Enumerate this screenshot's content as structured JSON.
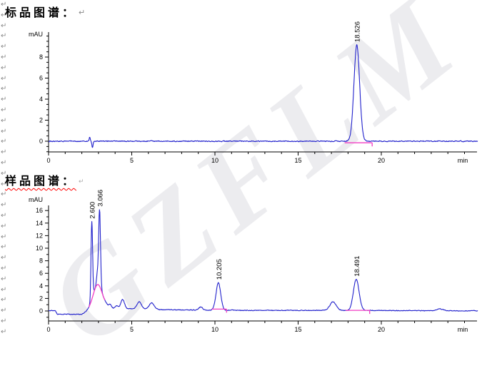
{
  "page": {
    "background": "#ffffff"
  },
  "watermark": {
    "text": "GZFLM"
  },
  "formatting_marks": {
    "glyph": "↵",
    "count": 32
  },
  "colors": {
    "trace": "#2121cc",
    "integration": "#f23cc4",
    "axis": "#000000",
    "title": "#000000",
    "spell_underline": "#ff0000",
    "paragraph_mark": "#8a8a8a"
  },
  "chart_data": [
    {
      "type": "line",
      "name": "standard-chromatogram",
      "title": "标品图谱：",
      "y_axis_label": "mAU",
      "x_axis_label": "min",
      "x_ticks": [
        0,
        5,
        10,
        15,
        20
      ],
      "y_ticks": [
        0,
        2,
        4,
        6,
        8
      ],
      "y_minor_step": 0.5,
      "x_range_min": [
        0,
        25.7
      ],
      "y_range_mau": [
        -1.0,
        10.4
      ],
      "peaks": [
        {
          "rt": 18.526,
          "label": "18.526",
          "height_mau": 9.15,
          "sigma_min": 0.17
        }
      ],
      "artifacts": [
        {
          "rt": 2.47,
          "height_mau": 0.35,
          "sigma_min": 0.03
        },
        {
          "rt": 2.64,
          "height_mau": -0.6,
          "sigma_min": 0.035
        }
      ],
      "baseline_anchors": [
        [
          0,
          0
        ],
        [
          25.7,
          0
        ]
      ],
      "noise_mau": 0.045,
      "noise_seed": 1234,
      "integration_segments": [
        {
          "kind": "flat",
          "from": 17.8,
          "to": 19.45,
          "level_mau": -0.15
        }
      ]
    },
    {
      "type": "line",
      "name": "sample-chromatogram",
      "title": "样品图谱：",
      "y_axis_label": "mAU",
      "x_axis_label": "min",
      "x_ticks": [
        0,
        5,
        10,
        15,
        20
      ],
      "y_ticks": [
        0,
        2,
        4,
        6,
        8,
        10,
        12,
        14,
        16
      ],
      "y_minor_step": 1,
      "x_range_min": [
        0,
        25.7
      ],
      "y_range_mau": [
        -1.6,
        16.8
      ],
      "peaks": [
        {
          "rt": 2.6,
          "label": "2.600",
          "height_mau": 12.4,
          "sigma_min": 0.048
        },
        {
          "rt": 2.93,
          "height_mau": 1.6,
          "sigma_min": 0.05
        },
        {
          "rt": 3.066,
          "label": "3.066",
          "height_mau": 12.2,
          "sigma_min": 0.055
        },
        {
          "rt": 3.7,
          "height_mau": 0.5,
          "sigma_min": 0.07
        },
        {
          "rt": 4.1,
          "height_mau": 0.4,
          "sigma_min": 0.09
        },
        {
          "rt": 4.45,
          "height_mau": 1.45,
          "sigma_min": 0.11
        },
        {
          "rt": 5.45,
          "height_mau": 1.15,
          "sigma_min": 0.13
        },
        {
          "rt": 6.2,
          "height_mau": 1.0,
          "sigma_min": 0.15
        },
        {
          "rt": 9.15,
          "height_mau": 0.5,
          "sigma_min": 0.11
        },
        {
          "rt": 10.205,
          "label": "10.205",
          "height_mau": 4.4,
          "sigma_min": 0.14
        },
        {
          "rt": 17.1,
          "height_mau": 1.35,
          "sigma_min": 0.19
        },
        {
          "rt": 18.491,
          "label": "18.491",
          "height_mau": 4.95,
          "sigma_min": 0.17
        },
        {
          "rt": 23.5,
          "height_mau": 0.3,
          "sigma_min": 0.18
        }
      ],
      "broad_hump": {
        "rt": 2.95,
        "height_mau": 3.8,
        "sigma_min": 0.27
      },
      "baseline_anchors": [
        [
          0,
          0.05
        ],
        [
          0.42,
          0.05
        ],
        [
          0.52,
          -0.5
        ],
        [
          2.0,
          -0.52
        ],
        [
          2.3,
          -0.1
        ],
        [
          2.5,
          0.15
        ],
        [
          3.45,
          0.7
        ],
        [
          3.8,
          0.45
        ],
        [
          4.2,
          0.4
        ],
        [
          5.0,
          0.35
        ],
        [
          6.0,
          0.3
        ],
        [
          7.0,
          0.2
        ],
        [
          8.5,
          0.15
        ],
        [
          10.0,
          0.12
        ],
        [
          12,
          0.1
        ],
        [
          16,
          0.1
        ],
        [
          20,
          0.08
        ],
        [
          25.7,
          0.03
        ]
      ],
      "noise_mau": 0.06,
      "noise_seed": 77,
      "integration_segments": [
        {
          "kind": "hump",
          "from": 2.42,
          "to": 3.4
        },
        {
          "kind": "flat",
          "from": 9.8,
          "to": 10.7,
          "level_mau": 0.3
        },
        {
          "kind": "flat",
          "from": 17.85,
          "to": 19.3,
          "level_mau": 0.1
        }
      ]
    }
  ]
}
